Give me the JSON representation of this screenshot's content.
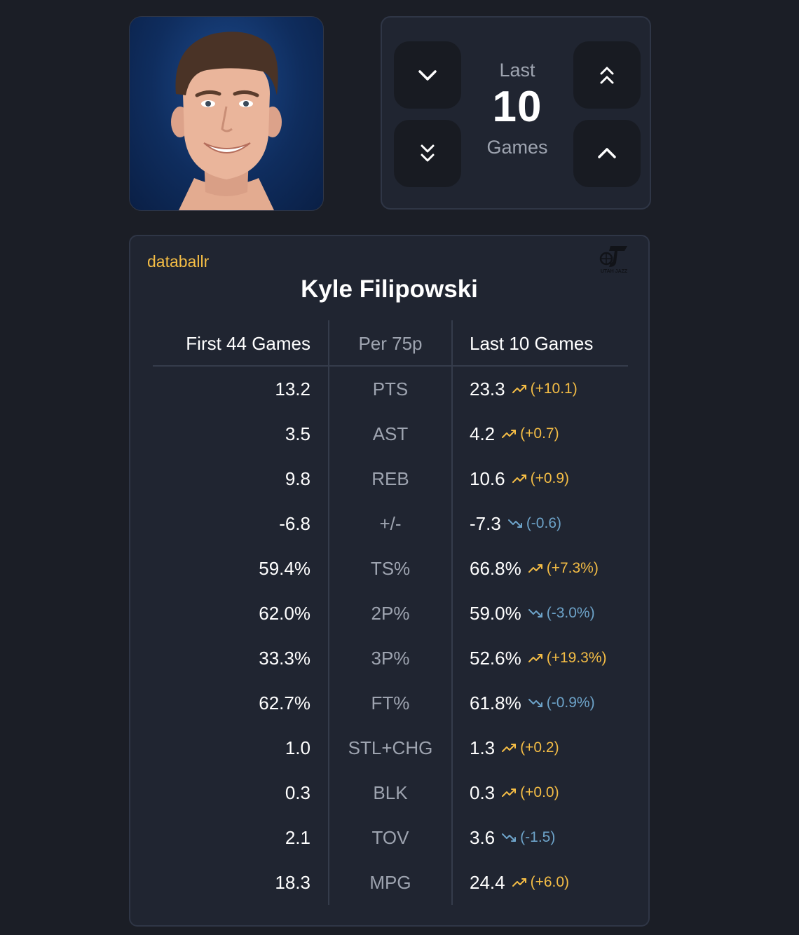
{
  "window": {},
  "controls": {
    "top": "Last",
    "count": "10",
    "bottom": "Games",
    "buttons": [
      "chevron-down-icon",
      "chevrons-up-icon",
      "chevrons-down-icon",
      "chevron-up-icon"
    ]
  },
  "card": {
    "brand": "databallr",
    "team_logo_text": "UTAH JAZZ",
    "player_name": "Kyle Filipowski",
    "headers": {
      "left": "First 44 Games",
      "middle": "Per 75p",
      "right": "Last 10 Games"
    },
    "rows": [
      {
        "first": "13.2",
        "stat": "PTS",
        "last": "23.3",
        "diff": "(+10.1)",
        "dir": "up"
      },
      {
        "first": "3.5",
        "stat": "AST",
        "last": "4.2",
        "diff": "(+0.7)",
        "dir": "up"
      },
      {
        "first": "9.8",
        "stat": "REB",
        "last": "10.6",
        "diff": "(+0.9)",
        "dir": "up"
      },
      {
        "first": "-6.8",
        "stat": "+/-",
        "last": "-7.3",
        "diff": "(-0.6)",
        "dir": "down"
      },
      {
        "first": "59.4%",
        "stat": "TS%",
        "last": "66.8%",
        "diff": "(+7.3%)",
        "dir": "up"
      },
      {
        "first": "62.0%",
        "stat": "2P%",
        "last": "59.0%",
        "diff": "(-3.0%)",
        "dir": "down"
      },
      {
        "first": "33.3%",
        "stat": "3P%",
        "last": "52.6%",
        "diff": "(+19.3%)",
        "dir": "up"
      },
      {
        "first": "62.7%",
        "stat": "FT%",
        "last": "61.8%",
        "diff": "(-0.9%)",
        "dir": "down"
      },
      {
        "first": "1.0",
        "stat": "STL+CHG",
        "last": "1.3",
        "diff": "(+0.2)",
        "dir": "up"
      },
      {
        "first": "0.3",
        "stat": "BLK",
        "last": "0.3",
        "diff": "(+0.0)",
        "dir": "up"
      },
      {
        "first": "2.1",
        "stat": "TOV",
        "last": "3.6",
        "diff": "(-1.5)",
        "dir": "down"
      },
      {
        "first": "18.3",
        "stat": "MPG",
        "last": "24.4",
        "diff": "(+6.0)",
        "dir": "up"
      }
    ]
  },
  "colors": {
    "background": "#1b1e26",
    "panel": "#202531",
    "accent": "#f4bd45",
    "trend_up": "#f4bd45",
    "trend_down": "#6da3c9"
  }
}
